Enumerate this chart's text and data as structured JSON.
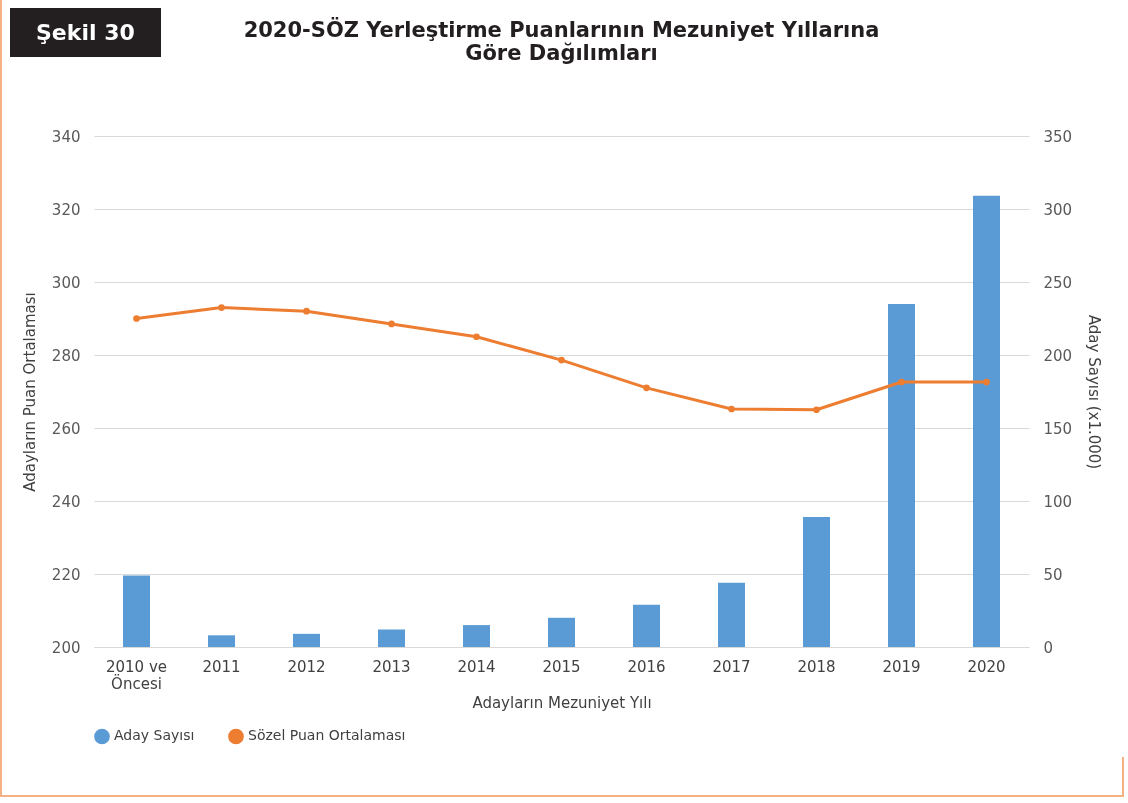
{
  "chart_data": {
    "type": "bar",
    "title": "2020-SÖZ Yerleştirme Puanlarının Mezuniyet Yıllarına Göre Dağılımları",
    "annotations": [
      "Şekil 30"
    ],
    "xlabel": "Adayların Mezuniyet Yılı",
    "ylabel": "Adayların Puan Ortalaması",
    "y2label": "Aday Sayısı (x1.000)",
    "categories": [
      "2010 ve Öncesi",
      "2011",
      "2012",
      "2013",
      "2014",
      "2015",
      "2016",
      "2017",
      "2018",
      "2019",
      "2020"
    ],
    "series": [
      {
        "name": "Aday Sayısı",
        "axis": "y2",
        "color": "#5b9bd5",
        "values": [
          49,
          8,
          9,
          12,
          15,
          20,
          29,
          44,
          89,
          235,
          309
        ]
      },
      {
        "name": "Sözel Puan Ortalaması",
        "type": "line",
        "color": "#ed7d31",
        "marker": "circle",
        "values": [
          290,
          293,
          292,
          288.5,
          285,
          278.6,
          271,
          265.2,
          265,
          272.6,
          272.6
        ]
      }
    ],
    "ylim": [
      200,
      340
    ],
    "yticks": [
      200,
      220,
      240,
      260,
      280,
      300,
      320,
      340
    ],
    "y2lim": [
      0,
      350
    ],
    "y2ticks": [
      0,
      50,
      100,
      150,
      200,
      250,
      300,
      350
    ],
    "grid": "y",
    "legend": "bottom"
  }
}
